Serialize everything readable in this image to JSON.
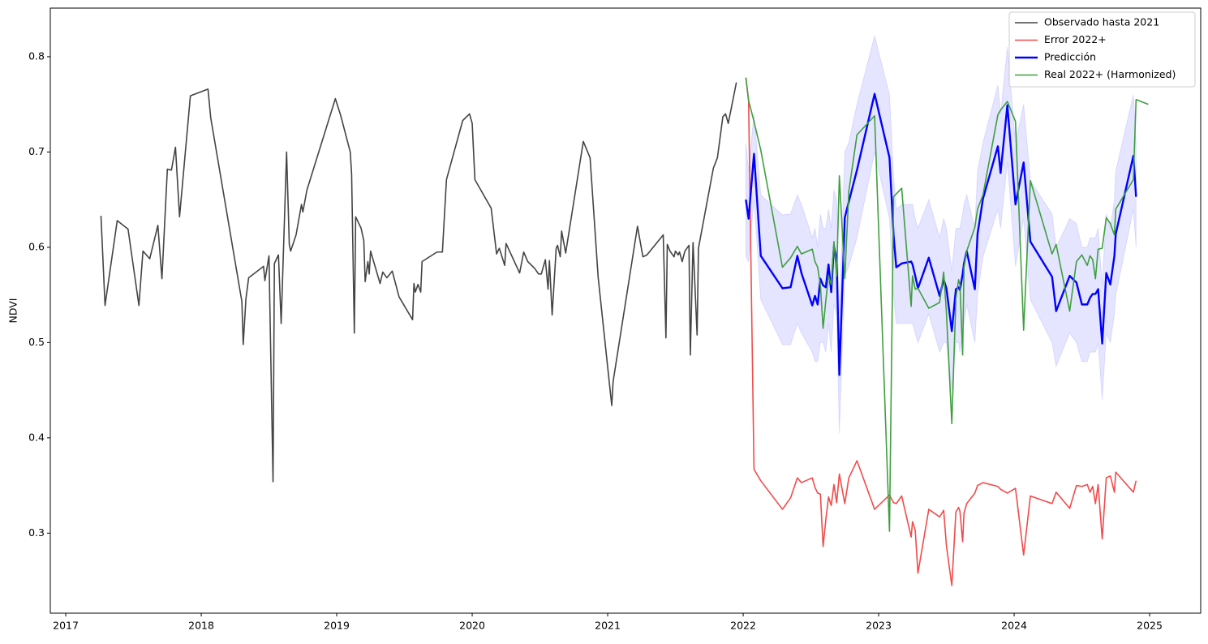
{
  "chart_data": {
    "type": "line",
    "y_label": "NDVI",
    "xlim": [
      2016.886,
      2025.377
    ],
    "ylim": [
      0.216,
      0.851
    ],
    "xticks": [
      2017,
      2018,
      2019,
      2020,
      2021,
      2022,
      2023,
      2024,
      2025
    ],
    "yticks": [
      0.3,
      0.4,
      0.5,
      0.6,
      0.7,
      0.8
    ],
    "grid": false,
    "legend": "upper right",
    "series": [
      {
        "name": "Observado hasta 2021",
        "color": "#444444",
        "width": 1.6,
        "x": [
          2017.26,
          2017.29,
          2017.38,
          2017.46,
          2017.54,
          2017.57,
          2017.62,
          2017.68,
          2017.71,
          2017.75,
          2017.78,
          2017.81,
          2017.84,
          2017.92,
          2018.05,
          2018.07,
          2018.3,
          2018.31,
          2018.33,
          2018.35,
          2018.46,
          2018.47,
          2018.5,
          2018.53,
          2018.54,
          2018.57,
          2018.59,
          2018.63,
          2018.65,
          2018.66,
          2018.7,
          2018.74,
          2018.75,
          2018.78,
          2018.99,
          2019.03,
          2019.1,
          2019.11,
          2019.13,
          2019.14,
          2019.18,
          2019.2,
          2019.21,
          2019.23,
          2019.24,
          2019.25,
          2019.32,
          2019.34,
          2019.37,
          2019.41,
          2019.46,
          2019.56,
          2019.57,
          2019.58,
          2019.6,
          2019.62,
          2019.63,
          2019.74,
          2019.78,
          2019.81,
          2019.93,
          2019.98,
          2020.0,
          2020.02,
          2020.14,
          2020.18,
          2020.2,
          2020.24,
          2020.25,
          2020.35,
          2020.38,
          2020.41,
          2020.46,
          2020.49,
          2020.51,
          2020.54,
          2020.56,
          2020.57,
          2020.59,
          2020.62,
          2020.63,
          2020.65,
          2020.66,
          2020.69,
          2020.82,
          2020.87,
          2020.93,
          2021.03,
          2021.04,
          2021.22,
          2021.26,
          2021.29,
          2021.41,
          2021.43,
          2021.44,
          2021.46,
          2021.49,
          2021.5,
          2021.52,
          2021.53,
          2021.55,
          2021.57,
          2021.6,
          2021.61,
          2021.63,
          2021.66,
          2021.67,
          2021.78,
          2021.81,
          2021.85,
          2021.87,
          2021.89,
          2021.95
        ],
        "values": [
          0.633,
          0.539,
          0.628,
          0.619,
          0.539,
          0.596,
          0.588,
          0.623,
          0.567,
          0.682,
          0.681,
          0.705,
          0.632,
          0.759,
          0.766,
          0.736,
          0.543,
          0.498,
          0.546,
          0.568,
          0.58,
          0.565,
          0.591,
          0.354,
          0.583,
          0.592,
          0.52,
          0.7,
          0.603,
          0.596,
          0.613,
          0.645,
          0.637,
          0.66,
          0.756,
          0.738,
          0.7,
          0.677,
          0.51,
          0.632,
          0.62,
          0.607,
          0.564,
          0.585,
          0.572,
          0.596,
          0.562,
          0.574,
          0.568,
          0.575,
          0.548,
          0.524,
          0.562,
          0.553,
          0.561,
          0.553,
          0.585,
          0.595,
          0.595,
          0.671,
          0.733,
          0.74,
          0.73,
          0.671,
          0.641,
          0.593,
          0.599,
          0.581,
          0.604,
          0.573,
          0.595,
          0.585,
          0.578,
          0.572,
          0.572,
          0.587,
          0.556,
          0.586,
          0.529,
          0.599,
          0.602,
          0.59,
          0.617,
          0.594,
          0.711,
          0.694,
          0.568,
          0.434,
          0.459,
          0.622,
          0.59,
          0.592,
          0.613,
          0.505,
          0.603,
          0.596,
          0.59,
          0.596,
          0.592,
          0.595,
          0.585,
          0.596,
          0.602,
          0.487,
          0.605,
          0.508,
          0.599,
          0.683,
          0.694,
          0.737,
          0.74,
          0.73,
          0.773
        ]
      },
      {
        "name": "Error 2022+",
        "color": "#f24b4b",
        "width": 1.6,
        "x": [
          2022.02,
          2022.04,
          2022.08,
          2022.13,
          2022.29,
          2022.35,
          2022.4,
          2022.43,
          2022.51,
          2022.53,
          2022.55,
          2022.57,
          2022.59,
          2022.61,
          2022.63,
          2022.65,
          2022.67,
          2022.69,
          2022.71,
          2022.75,
          2022.78,
          2022.84,
          2022.97,
          2023.08,
          2023.11,
          2023.13,
          2023.17,
          2023.24,
          2023.25,
          2023.27,
          2023.29,
          2023.37,
          2023.45,
          2023.48,
          2023.5,
          2023.54,
          2023.57,
          2023.59,
          2023.6,
          2023.62,
          2023.63,
          2023.65,
          2023.71,
          2023.73,
          2023.77,
          2023.88,
          2023.9,
          2023.95,
          2024.01,
          2024.07,
          2024.12,
          2024.28,
          2024.31,
          2024.41,
          2024.46,
          2024.5,
          2024.54,
          2024.56,
          2024.58,
          2024.6,
          2024.62,
          2024.65,
          2024.68,
          2024.71,
          2024.74,
          2024.75,
          2024.88,
          2024.9,
          2024.99
        ],
        "values": [
          0.778,
          0.754,
          0.367,
          0.355,
          0.325,
          0.337,
          0.358,
          0.353,
          0.358,
          0.348,
          0.342,
          0.341,
          0.286,
          0.314,
          0.338,
          0.329,
          0.351,
          0.332,
          0.362,
          0.331,
          0.358,
          0.376,
          0.325,
          0.34,
          0.332,
          0.331,
          0.339,
          0.296,
          0.312,
          0.303,
          0.258,
          0.325,
          0.317,
          0.324,
          0.287,
          0.245,
          0.322,
          0.327,
          0.323,
          0.291,
          0.321,
          0.331,
          0.342,
          0.35,
          0.353,
          0.349,
          0.346,
          0.342,
          0.347,
          0.277,
          0.339,
          0.331,
          0.343,
          0.326,
          0.35,
          0.349,
          0.351,
          0.343,
          0.349,
          0.331,
          0.351,
          0.294,
          0.358,
          0.36,
          0.343,
          0.364,
          0.343,
          0.355,
          null
        ]
      },
      {
        "name": "Predicción",
        "color": "#0000ff",
        "width": 2.4,
        "band_color": "#0000ff",
        "x": [
          2022.02,
          2022.04,
          2022.08,
          2022.13,
          2022.29,
          2022.35,
          2022.4,
          2022.43,
          2022.51,
          2022.53,
          2022.55,
          2022.57,
          2022.59,
          2022.61,
          2022.63,
          2022.65,
          2022.67,
          2022.69,
          2022.71,
          2022.75,
          2022.78,
          2022.84,
          2022.97,
          2023.08,
          2023.11,
          2023.13,
          2023.17,
          2023.24,
          2023.25,
          2023.27,
          2023.29,
          2023.37,
          2023.45,
          2023.48,
          2023.5,
          2023.54,
          2023.57,
          2023.59,
          2023.6,
          2023.62,
          2023.63,
          2023.65,
          2023.71,
          2023.73,
          2023.77,
          2023.88,
          2023.9,
          2023.95,
          2024.01,
          2024.07,
          2024.12,
          2024.28,
          2024.31,
          2024.41,
          2024.46,
          2024.5,
          2024.54,
          2024.56,
          2024.58,
          2024.6,
          2024.62,
          2024.65,
          2024.68,
          2024.71,
          2024.74,
          2024.75,
          2024.88,
          2024.9,
          2024.99
        ],
        "values": [
          0.65,
          0.63,
          0.698,
          0.591,
          0.557,
          0.558,
          0.591,
          0.573,
          0.539,
          0.549,
          0.54,
          0.567,
          0.56,
          0.558,
          0.582,
          0.553,
          0.601,
          0.587,
          0.466,
          0.631,
          0.648,
          0.681,
          0.761,
          0.694,
          0.613,
          0.579,
          0.583,
          0.585,
          0.582,
          0.57,
          0.557,
          0.589,
          0.549,
          0.566,
          0.557,
          0.512,
          0.556,
          0.558,
          0.555,
          0.572,
          0.583,
          0.596,
          0.556,
          0.614,
          0.651,
          0.706,
          0.678,
          0.749,
          0.645,
          0.689,
          0.606,
          0.569,
          0.533,
          0.57,
          0.563,
          0.54,
          0.54,
          0.547,
          0.551,
          0.551,
          0.556,
          0.499,
          0.573,
          0.561,
          0.591,
          0.614,
          0.696,
          0.653,
          null
        ],
        "lower": [
          0.59,
          0.585,
          0.65,
          0.545,
          0.498,
          0.498,
          0.52,
          0.51,
          0.49,
          0.48,
          0.48,
          0.5,
          0.5,
          0.49,
          0.52,
          0.49,
          0.54,
          0.53,
          0.405,
          0.57,
          0.58,
          0.61,
          0.7,
          0.63,
          0.55,
          0.52,
          0.52,
          0.52,
          0.52,
          0.51,
          0.5,
          0.53,
          0.49,
          0.5,
          0.5,
          0.45,
          0.5,
          0.5,
          0.49,
          0.51,
          0.52,
          0.54,
          0.5,
          0.55,
          0.59,
          0.64,
          0.62,
          0.69,
          0.58,
          0.63,
          0.545,
          0.5,
          0.475,
          0.51,
          0.5,
          0.48,
          0.48,
          0.49,
          0.49,
          0.49,
          0.5,
          0.44,
          0.51,
          0.5,
          0.53,
          0.55,
          0.64,
          0.6,
          null
        ],
        "upper": [
          0.709,
          0.68,
          0.74,
          0.655,
          0.634,
          0.635,
          0.655,
          0.645,
          0.61,
          0.62,
          0.6,
          0.635,
          0.62,
          0.62,
          0.64,
          0.62,
          0.66,
          0.65,
          0.53,
          0.7,
          0.71,
          0.75,
          0.822,
          0.76,
          0.675,
          0.64,
          0.645,
          0.645,
          0.645,
          0.63,
          0.62,
          0.65,
          0.61,
          0.63,
          0.62,
          0.575,
          0.62,
          0.62,
          0.62,
          0.635,
          0.645,
          0.655,
          0.62,
          0.68,
          0.71,
          0.77,
          0.74,
          0.81,
          0.71,
          0.75,
          0.67,
          0.635,
          0.6,
          0.63,
          0.625,
          0.6,
          0.6,
          0.61,
          0.61,
          0.61,
          0.62,
          0.56,
          0.635,
          0.62,
          0.65,
          0.68,
          0.76,
          0.71,
          null
        ]
      },
      {
        "name": "Real 2022+ (Harmonized)",
        "color": "#3f9f3f",
        "width": 1.6,
        "x": [
          2022.02,
          2022.04,
          2022.08,
          2022.13,
          2022.29,
          2022.35,
          2022.4,
          2022.43,
          2022.51,
          2022.53,
          2022.55,
          2022.57,
          2022.59,
          2022.61,
          2022.63,
          2022.65,
          2022.67,
          2022.69,
          2022.71,
          2022.75,
          2022.78,
          2022.84,
          2022.97,
          2023.08,
          2023.11,
          2023.13,
          2023.17,
          2023.24,
          2023.25,
          2023.27,
          2023.29,
          2023.37,
          2023.45,
          2023.48,
          2023.5,
          2023.54,
          2023.57,
          2023.59,
          2023.6,
          2023.62,
          2023.63,
          2023.65,
          2023.71,
          2023.73,
          2023.77,
          2023.88,
          2023.9,
          2023.95,
          2024.01,
          2024.07,
          2024.12,
          2024.28,
          2024.31,
          2024.41,
          2024.46,
          2024.5,
          2024.54,
          2024.56,
          2024.58,
          2024.6,
          2024.62,
          2024.65,
          2024.68,
          2024.71,
          2024.74,
          2024.75,
          2024.88,
          2024.9,
          2024.99
        ],
        "values": [
          0.778,
          0.754,
          0.732,
          0.702,
          0.579,
          0.589,
          0.601,
          0.593,
          0.598,
          0.585,
          0.579,
          0.56,
          0.515,
          0.544,
          0.57,
          0.561,
          0.606,
          0.57,
          0.675,
          0.567,
          0.659,
          0.718,
          0.738,
          0.302,
          0.653,
          0.656,
          0.662,
          0.538,
          0.57,
          0.556,
          0.557,
          0.536,
          0.542,
          0.574,
          0.532,
          0.415,
          0.546,
          0.566,
          0.561,
          0.487,
          0.579,
          0.596,
          0.621,
          0.64,
          0.655,
          0.739,
          0.744,
          0.753,
          0.732,
          0.513,
          0.67,
          0.593,
          0.603,
          0.533,
          0.585,
          0.592,
          0.581,
          0.591,
          0.587,
          0.567,
          0.598,
          0.599,
          0.631,
          0.625,
          0.613,
          0.64,
          0.671,
          0.755,
          0.75
        ]
      }
    ]
  }
}
